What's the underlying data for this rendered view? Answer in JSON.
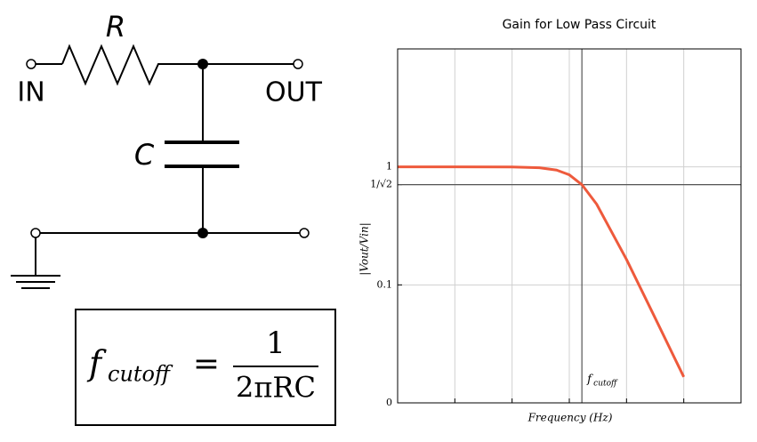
{
  "circuit": {
    "resistor": "R",
    "capacitor": "C",
    "input": "IN",
    "output": "OUT"
  },
  "formula": {
    "lhs": "f",
    "lhs_sub": "cutoff",
    "equals": "=",
    "numerator": "1",
    "denominator": "2πRC"
  },
  "chart_data": {
    "type": "line",
    "title": "Gain for Low Pass Circuit",
    "xlabel": "Frequency (Hz)",
    "ylabel": "|Vout/Vin|",
    "xscale": "log",
    "yscale": "log",
    "grid": true,
    "xlim": [
      1,
      1000000
    ],
    "xticks": [
      10,
      100,
      1000,
      10000,
      100000
    ],
    "ylim": [
      0.01,
      10
    ],
    "yticks": [
      {
        "value": 0.01,
        "label": "0"
      },
      0.1,
      {
        "value": 0.7071,
        "label": "1/√2"
      },
      1
    ],
    "x": [
      1,
      10,
      100,
      300,
      600,
      1000,
      1660,
      3000,
      10000,
      30000,
      100000
    ],
    "series": [
      {
        "color": "#ee5a3c",
        "values": [
          1.0,
          1.0,
          0.998,
          0.984,
          0.94,
          0.857,
          0.707,
          0.484,
          0.164,
          0.0552,
          0.0166
        ]
      }
    ],
    "hline": 0.7071,
    "vline": 1660,
    "annotation": {
      "text": "f",
      "sub": "cutoff"
    }
  }
}
